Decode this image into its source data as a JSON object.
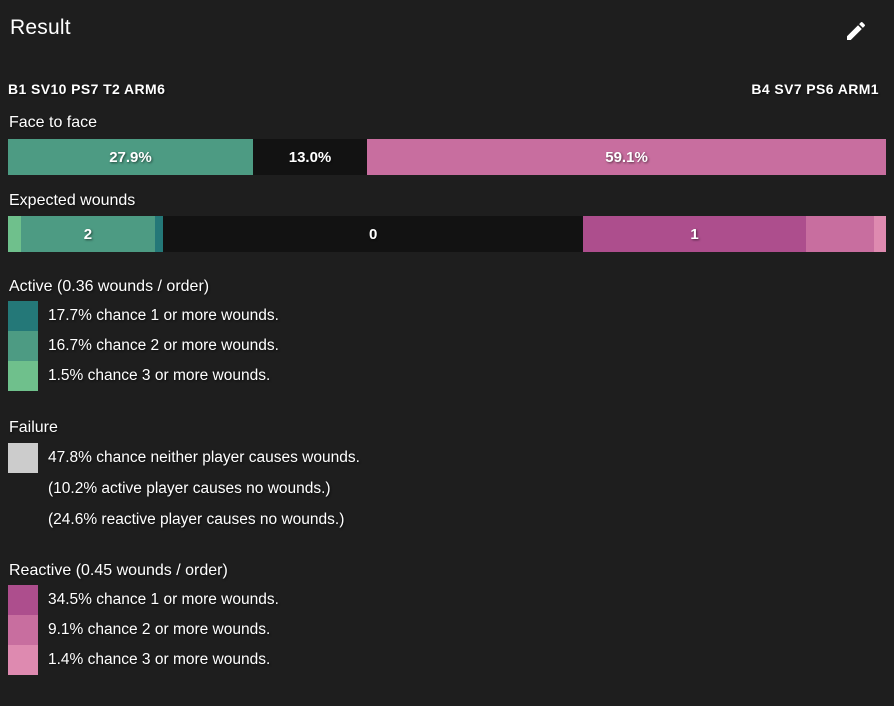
{
  "header": {
    "title": "Result"
  },
  "profiles": {
    "active": "B1 SV10 PS7 T2 ARM6",
    "reactive": "B4 SV7 PS6 ARM1"
  },
  "colors": {
    "background": "#1e1e1e",
    "none_segment": "#121212",
    "active_1": "#247878",
    "active_2": "#4d9b83",
    "active_3": "#6fc08c",
    "failure": "#cccccc",
    "reactive_1": "#ad4e8d",
    "reactive_2": "#c86e9f",
    "reactive_3": "#de8ab0"
  },
  "chart_data": [
    {
      "type": "bar",
      "title": "Face to face",
      "series": [
        {
          "name": "active wins",
          "label": "27.9%",
          "value": 27.9,
          "color": "#4d9b83"
        },
        {
          "name": "tie",
          "label": "13.0%",
          "value": 13.0,
          "color": "#121212"
        },
        {
          "name": "reactive wins",
          "label": "59.1%",
          "value": 59.1,
          "color": "#c86e9f"
        }
      ]
    },
    {
      "type": "bar",
      "title": "Expected wounds",
      "series": [
        {
          "name": "active 3+ wounds",
          "label": "",
          "value": 1.5,
          "color": "#6fc08c"
        },
        {
          "name": "active 2 wounds",
          "label": "2",
          "value": 15.2,
          "color": "#4d9b83"
        },
        {
          "name": "active 1 wound",
          "label": "",
          "value": 1.0,
          "color": "#247878"
        },
        {
          "name": "no wounds",
          "label": "0",
          "value": 47.8,
          "color": "#121212"
        },
        {
          "name": "reactive 1 wound",
          "label": "1",
          "value": 25.4,
          "color": "#ad4e8d"
        },
        {
          "name": "reactive 2 wounds",
          "label": "",
          "value": 7.7,
          "color": "#c86e9f"
        },
        {
          "name": "reactive 3+ wounds",
          "label": "",
          "value": 1.4,
          "color": "#de8ab0"
        }
      ]
    }
  ],
  "face_to_face": {
    "label": "Face to face",
    "segments": [
      {
        "label": "27.9%",
        "width_pct": 27.9,
        "color": "#4d9b83"
      },
      {
        "label": "13.0%",
        "width_pct": 13.0,
        "color": "#121212"
      },
      {
        "label": "59.1%",
        "width_pct": 59.1,
        "color": "#c86e9f"
      }
    ]
  },
  "expected_wounds": {
    "label": "Expected wounds",
    "segments": [
      {
        "label": "",
        "width_pct": 1.5,
        "color": "#6fc08c"
      },
      {
        "label": "2",
        "width_pct": 15.2,
        "color": "#4d9b83"
      },
      {
        "label": "",
        "width_pct": 1.0,
        "color": "#247878"
      },
      {
        "label": "0",
        "width_pct": 47.8,
        "color": "#121212"
      },
      {
        "label": "1",
        "width_pct": 25.4,
        "color": "#ad4e8d"
      },
      {
        "label": "",
        "width_pct": 7.7,
        "color": "#c86e9f"
      },
      {
        "label": "",
        "width_pct": 1.4,
        "color": "#de8ab0"
      }
    ]
  },
  "sections": {
    "active": {
      "title": "Active (0.36 wounds / order)",
      "rows": [
        {
          "swatch": "#247878",
          "text": "17.7% chance 1 or more wounds."
        },
        {
          "swatch": "#4d9b83",
          "text": "16.7% chance 2 or more wounds."
        },
        {
          "swatch": "#6fc08c",
          "text": "1.5% chance 3 or more wounds."
        }
      ]
    },
    "failure": {
      "title": "Failure",
      "rows": [
        {
          "swatch": "#cccccc",
          "text": "47.8% chance neither player causes wounds."
        },
        {
          "text": "(10.2% active player causes no wounds.)"
        },
        {
          "text": "(24.6% reactive player causes no wounds.)"
        }
      ]
    },
    "reactive": {
      "title": "Reactive (0.45 wounds / order)",
      "rows": [
        {
          "swatch": "#ad4e8d",
          "text": "34.5% chance 1 or more wounds."
        },
        {
          "swatch": "#c86e9f",
          "text": "9.1% chance 2 or more wounds."
        },
        {
          "swatch": "#de8ab0",
          "text": "1.4% chance 3 or more wounds."
        }
      ]
    }
  }
}
